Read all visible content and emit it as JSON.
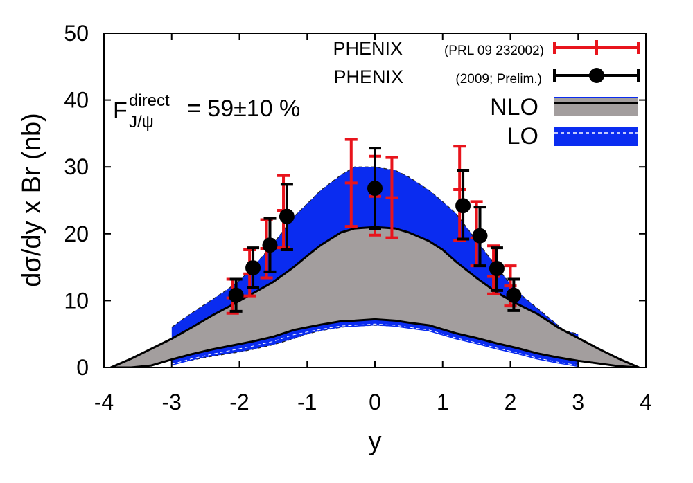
{
  "chart_data": {
    "type": "line",
    "title": "",
    "xlabel": "y",
    "ylabel": "dσ/dy x Br (nb)",
    "xlim": [
      -4,
      4
    ],
    "ylim": [
      0,
      50
    ],
    "xticks": [
      "-4",
      "-3",
      "-2",
      "-1",
      "0",
      "1",
      "2",
      "3",
      "4"
    ],
    "yticks": [
      "0",
      "10",
      "20",
      "30",
      "40",
      "50"
    ],
    "annotation": {
      "main": "F",
      "sup": "direct",
      "sub": "J/ψ",
      "value": "= 59±10 %"
    },
    "legend": {
      "position": "top-right",
      "entries": [
        {
          "label": "PHENIX",
          "detail": "(PRL 09 232002)",
          "color": "#e8141c"
        },
        {
          "label": "PHENIX",
          "detail": "(2009; Prelim.)",
          "color": "#000000"
        },
        {
          "label": "NLO",
          "detail": "",
          "color": "#a39e9e"
        },
        {
          "label": "LO",
          "detail": "",
          "color": "#0a2cf0"
        }
      ]
    },
    "series": [
      {
        "name": "LO band",
        "color": "#0a2cf0",
        "x": [
          -3.0,
          -2.8,
          -2.5,
          -2.2,
          -2.0,
          -1.8,
          -1.5,
          -1.2,
          -1.0,
          -0.8,
          -0.5,
          -0.3,
          0.0,
          0.3,
          0.5,
          0.8,
          1.0,
          1.2,
          1.5,
          1.8,
          2.0,
          2.2,
          2.5,
          2.8,
          3.0
        ],
        "upper": [
          6.0,
          7.5,
          9.5,
          11.5,
          13.0,
          15.0,
          18.5,
          22.5,
          24.5,
          26.5,
          28.8,
          30.0,
          30.0,
          29.5,
          28.5,
          26.5,
          24.8,
          23.0,
          19.0,
          15.0,
          12.5,
          10.5,
          8.0,
          5.5,
          5.0
        ],
        "lower": [
          0.7,
          0.9,
          1.5,
          2.0,
          2.3,
          2.7,
          3.4,
          4.3,
          5.0,
          5.5,
          6.0,
          6.2,
          6.3,
          6.2,
          6.0,
          5.6,
          5.1,
          4.5,
          3.6,
          2.8,
          2.3,
          1.8,
          1.2,
          0.7,
          0.5
        ]
      },
      {
        "name": "NLO band",
        "color": "#a39e9e",
        "x": [
          -3.9,
          -3.6,
          -3.3,
          -3.0,
          -2.7,
          -2.4,
          -2.1,
          -1.8,
          -1.5,
          -1.2,
          -1.0,
          -0.8,
          -0.5,
          -0.3,
          0.0,
          0.3,
          0.5,
          0.8,
          1.0,
          1.2,
          1.5,
          1.8,
          2.1,
          2.4,
          2.7,
          3.0,
          3.3,
          3.6,
          3.9
        ],
        "upper": [
          0.0,
          1.3,
          2.8,
          4.3,
          6.0,
          7.8,
          9.4,
          11.1,
          12.8,
          15.0,
          16.7,
          18.3,
          20.2,
          20.8,
          21.0,
          20.8,
          20.2,
          18.9,
          17.6,
          15.8,
          13.4,
          11.2,
          9.5,
          8.0,
          6.0,
          4.4,
          2.8,
          1.3,
          0.0
        ],
        "lower": [
          0.0,
          0.0,
          0.3,
          1.2,
          2.0,
          2.7,
          3.3,
          3.9,
          4.6,
          5.6,
          6.0,
          6.4,
          6.9,
          7.0,
          7.2,
          7.0,
          6.7,
          6.3,
          5.7,
          5.1,
          4.4,
          3.6,
          2.9,
          2.1,
          1.5,
          1.0,
          0.6,
          0.2,
          0.0
        ]
      },
      {
        "name": "PHENIX (PRL 09 232002)",
        "color": "#e8141c",
        "x": [
          -2.1,
          -1.85,
          -1.6,
          -1.35,
          -0.35,
          0.0,
          0.25,
          1.25,
          1.5,
          1.75,
          2.0
        ],
        "y": [
          10.4,
          14.0,
          17.8,
          23.5,
          27.6,
          25.6,
          25.4,
          26.6,
          19.4,
          13.6,
          12.2
        ],
        "err_lo": [
          2.3,
          3.3,
          4.4,
          5.6,
          6.5,
          5.8,
          6.0,
          7.6,
          4.2,
          2.6,
          3.0
        ],
        "err_hi": [
          2.8,
          3.6,
          4.3,
          5.2,
          6.5,
          6.0,
          6.0,
          6.5,
          5.4,
          4.6,
          3.0
        ]
      },
      {
        "name": "PHENIX (2009; Prelim.)",
        "color": "#000000",
        "x": [
          -2.05,
          -1.8,
          -1.55,
          -1.3,
          0.0,
          1.3,
          1.55,
          1.8,
          2.05
        ],
        "y": [
          10.8,
          14.9,
          18.3,
          22.6,
          26.8,
          24.2,
          19.7,
          14.8,
          10.8
        ],
        "err_lo": [
          2.4,
          2.9,
          4.0,
          5.0,
          6.0,
          5.0,
          4.5,
          3.3,
          2.3
        ],
        "err_hi": [
          2.4,
          3.0,
          4.0,
          4.8,
          6.0,
          5.3,
          4.3,
          3.1,
          2.4
        ]
      }
    ]
  }
}
